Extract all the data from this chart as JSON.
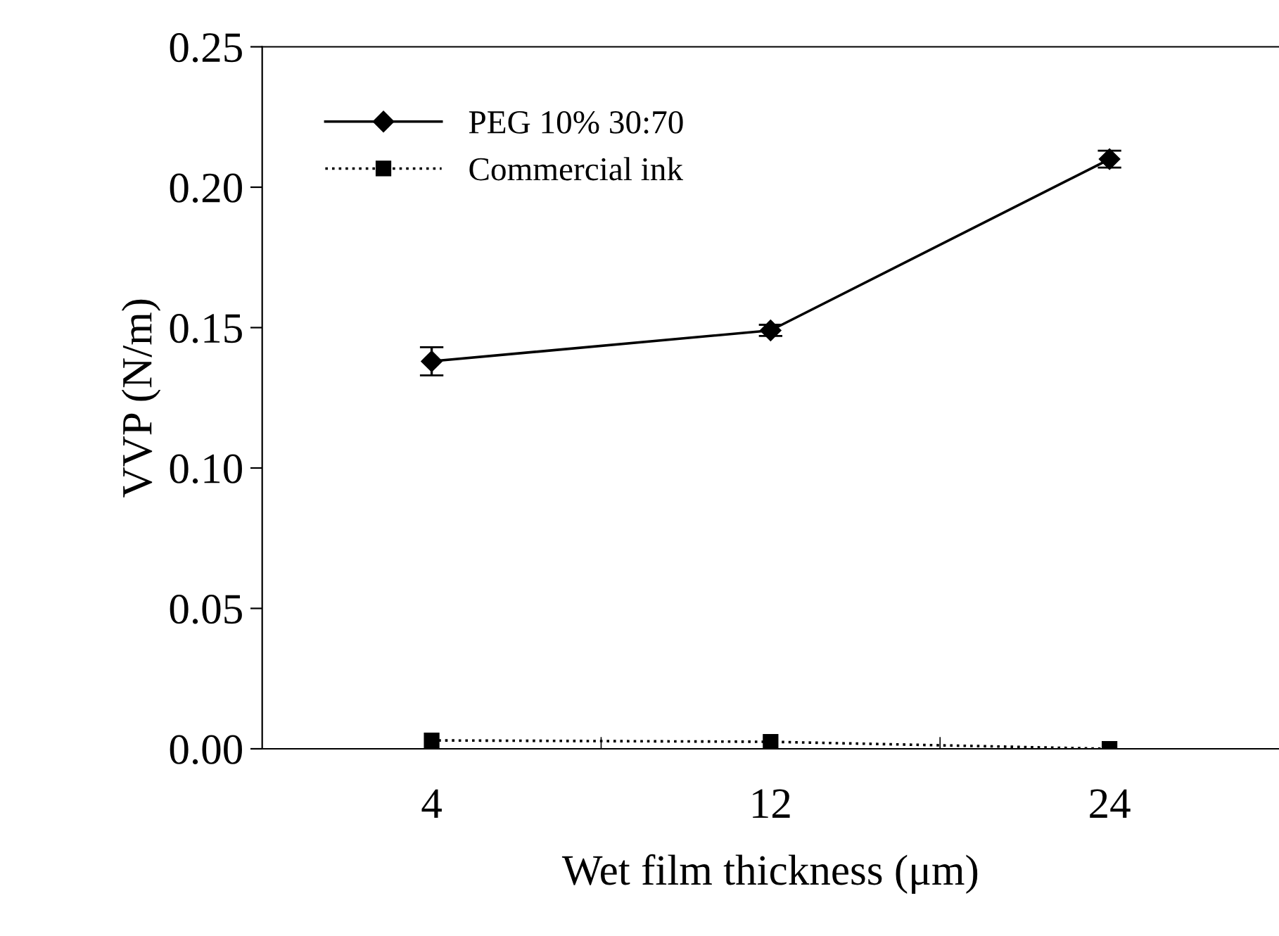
{
  "chart_data": {
    "type": "line",
    "xlabel": "Wet film thickness (μm)",
    "ylabel": "VVP (N/m)",
    "categories": [
      "4",
      "12",
      "24"
    ],
    "series": [
      {
        "name": "PEG 10% 30:70",
        "color": "#000000",
        "marker": "diamond",
        "line_style": "solid",
        "values": [
          0.138,
          0.149,
          0.21
        ],
        "errors": [
          0.005,
          0.002,
          0.003
        ]
      },
      {
        "name": "Commercial ink",
        "color": "#000000",
        "marker": "square",
        "line_style": "dotted",
        "values": [
          0.003,
          0.0025,
          0.0
        ]
      }
    ],
    "ylim": [
      0,
      0.25
    ],
    "yticks": [
      {
        "value": 0,
        "label": "0.00"
      },
      {
        "value": 0.05,
        "label": "0.05"
      },
      {
        "value": 0.1,
        "label": "0.10"
      },
      {
        "value": 0.15,
        "label": "0.15"
      },
      {
        "value": 0.2,
        "label": "0.20"
      },
      {
        "value": 0.25,
        "label": "0.25"
      }
    ],
    "grid": false,
    "legend": "top left"
  }
}
